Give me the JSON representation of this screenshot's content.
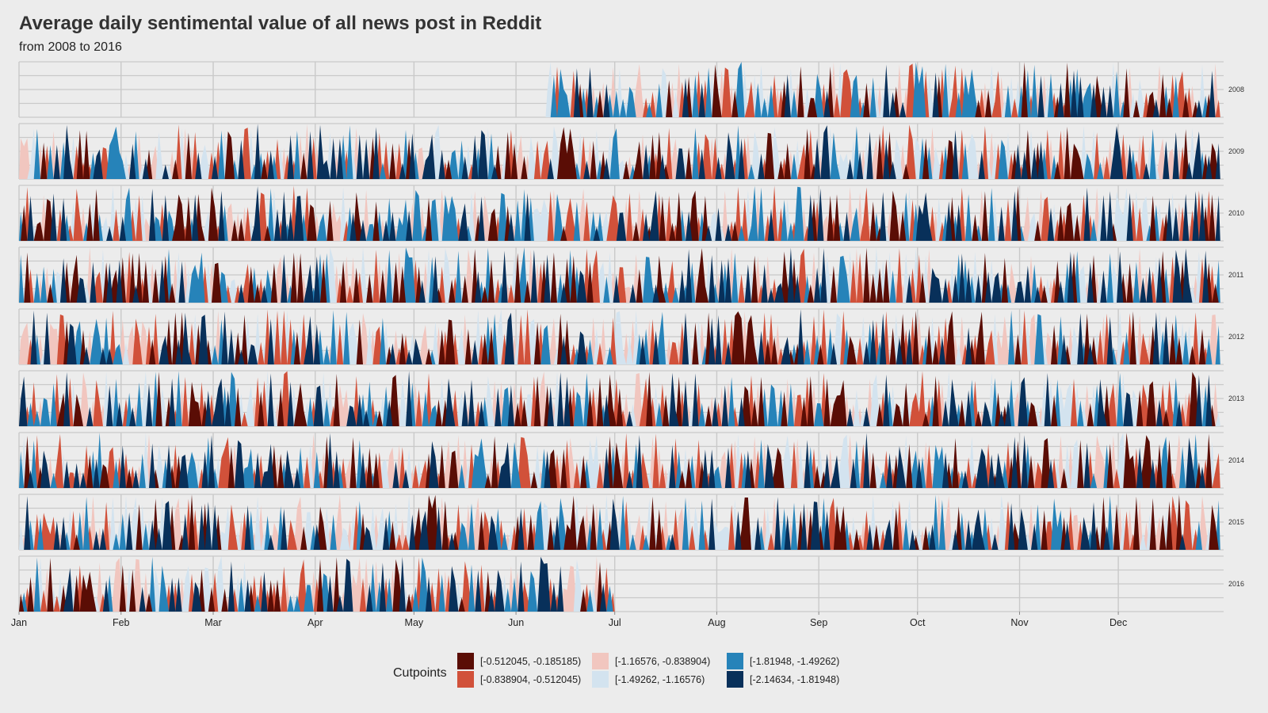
{
  "chart_data": {
    "type": "area",
    "title": "Average daily sentimental value of all news post in Reddit",
    "subtitle": "from 2008 to 2016",
    "xlabel": "",
    "ylabel": "",
    "x_ticks": [
      "Jan",
      "Feb",
      "Mar",
      "Apr",
      "May",
      "Jun",
      "Jul",
      "Aug",
      "Sep",
      "Oct",
      "Nov",
      "Dec"
    ],
    "facets": [
      "2008",
      "2009",
      "2010",
      "2011",
      "2012",
      "2013",
      "2014",
      "2015",
      "2016"
    ],
    "facet_ranges": {
      "2008": [
        "Jun 10",
        "Dec 31"
      ],
      "2009": [
        "Jan 1",
        "Dec 31"
      ],
      "2010": [
        "Jan 1",
        "Dec 31"
      ],
      "2011": [
        "Jan 1",
        "Dec 31"
      ],
      "2012": [
        "Jan 1",
        "Dec 31"
      ],
      "2013": [
        "Jan 1",
        "Dec 31"
      ],
      "2014": [
        "Jan 1",
        "Dec 31"
      ],
      "2015": [
        "Jan 1",
        "Dec 31"
      ],
      "2016": [
        "Jan 1",
        "Jun 30"
      ]
    },
    "grid": true,
    "legend": {
      "title": "Cutpoints",
      "position": "bottom",
      "items": [
        {
          "label": "[-0.512045, -0.185185)",
          "color": "#5a0d05"
        },
        {
          "label": "[-0.838904, -0.512045)",
          "color": "#d1513a"
        },
        {
          "label": "[-1.16576, -0.838904)",
          "color": "#f1c6bf"
        },
        {
          "label": "[-1.49262, -1.16576)",
          "color": "#d3e3ef"
        },
        {
          "label": "[-1.81948, -1.49262)",
          "color": "#2683b9"
        },
        {
          "label": "[-2.14634, -1.81948)",
          "color": "#08305a"
        }
      ]
    }
  }
}
